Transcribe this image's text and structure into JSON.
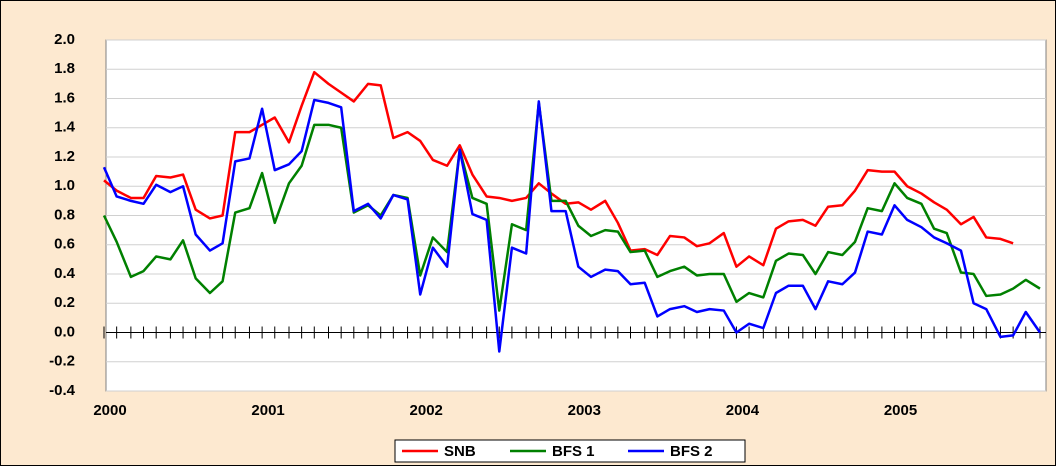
{
  "chart_data": {
    "type": "line",
    "x": [
      2000.0,
      2000.08,
      2000.17,
      2000.25,
      2000.33,
      2000.42,
      2000.5,
      2000.58,
      2000.67,
      2000.75,
      2000.83,
      2000.92,
      2001.0,
      2001.08,
      2001.17,
      2001.25,
      2001.33,
      2001.42,
      2001.5,
      2001.58,
      2001.67,
      2001.75,
      2001.83,
      2001.92,
      2002.0,
      2002.08,
      2002.17,
      2002.25,
      2002.33,
      2002.42,
      2002.5,
      2002.58,
      2002.67,
      2002.75,
      2002.83,
      2002.92,
      2003.0,
      2003.08,
      2003.17,
      2003.25,
      2003.33,
      2003.42,
      2003.5,
      2003.58,
      2003.67,
      2003.75,
      2003.83,
      2003.92,
      2004.0,
      2004.08,
      2004.17,
      2004.25,
      2004.33,
      2004.42,
      2004.5,
      2004.58,
      2004.67,
      2004.75,
      2004.83,
      2004.92,
      2005.0,
      2005.08,
      2005.17,
      2005.25,
      2005.33,
      2005.42,
      2005.5,
      2005.58,
      2005.67,
      2005.75,
      2005.83,
      2005.92
    ],
    "series": [
      {
        "name": "SNB",
        "color": "#ff0000",
        "values": [
          1.04,
          0.97,
          0.92,
          0.92,
          1.07,
          1.06,
          1.08,
          0.84,
          0.78,
          0.8,
          1.37,
          1.37,
          1.42,
          1.47,
          1.3,
          1.55,
          1.78,
          1.7,
          1.64,
          1.58,
          1.7,
          1.69,
          1.33,
          1.37,
          1.31,
          1.18,
          1.14,
          1.28,
          1.08,
          0.93,
          0.92,
          0.9,
          0.92,
          1.02,
          0.95,
          0.88,
          0.89,
          0.84,
          0.9,
          0.75,
          0.56,
          0.57,
          0.53,
          0.66,
          0.65,
          0.59,
          0.61,
          0.68,
          0.45,
          0.52,
          0.46,
          0.71,
          0.76,
          0.77,
          0.73,
          0.86,
          0.87,
          0.97,
          1.11,
          1.1,
          1.1,
          1.0,
          0.95,
          0.89,
          0.84,
          0.74,
          0.79,
          0.65,
          0.64,
          0.61,
          null,
          null
        ]
      },
      {
        "name": "BFS 1",
        "color": "#008000",
        "values": [
          0.8,
          0.62,
          0.38,
          0.42,
          0.52,
          0.5,
          0.63,
          0.37,
          0.27,
          0.35,
          0.82,
          0.85,
          1.09,
          0.75,
          1.02,
          1.14,
          1.42,
          1.42,
          1.4,
          0.82,
          0.87,
          0.8,
          0.94,
          0.92,
          0.39,
          0.65,
          0.55,
          1.25,
          0.92,
          0.88,
          0.15,
          0.74,
          0.7,
          1.57,
          0.9,
          0.9,
          0.73,
          0.66,
          0.7,
          0.69,
          0.55,
          0.56,
          0.38,
          0.42,
          0.45,
          0.39,
          0.4,
          0.4,
          0.21,
          0.27,
          0.24,
          0.49,
          0.54,
          0.53,
          0.4,
          0.55,
          0.53,
          0.62,
          0.85,
          0.83,
          1.02,
          0.92,
          0.88,
          0.71,
          0.68,
          0.41,
          0.4,
          0.25,
          0.26,
          0.3,
          0.36,
          0.3
        ]
      },
      {
        "name": "BFS 2",
        "color": "#0000ff",
        "values": [
          1.13,
          0.93,
          0.9,
          0.88,
          1.01,
          0.96,
          1.0,
          0.67,
          0.56,
          0.61,
          1.17,
          1.19,
          1.53,
          1.11,
          1.15,
          1.24,
          1.59,
          1.57,
          1.54,
          0.83,
          0.88,
          0.78,
          0.94,
          0.91,
          0.26,
          0.58,
          0.45,
          1.25,
          0.81,
          0.77,
          -0.13,
          0.58,
          0.54,
          1.58,
          0.83,
          0.83,
          0.45,
          0.38,
          0.43,
          0.42,
          0.33,
          0.34,
          0.11,
          0.16,
          0.18,
          0.14,
          0.16,
          0.15,
          0.0,
          0.06,
          0.03,
          0.27,
          0.32,
          0.32,
          0.16,
          0.35,
          0.33,
          0.41,
          0.69,
          0.67,
          0.87,
          0.77,
          0.72,
          0.65,
          0.61,
          0.56,
          0.2,
          0.16,
          -0.03,
          -0.02,
          0.14,
          0.0
        ]
      }
    ],
    "xlim": [
      2000,
      2005.92
    ],
    "xticks": [
      2000,
      2001,
      2002,
      2003,
      2004,
      2005
    ],
    "ylim": [
      -0.4,
      2.0
    ],
    "yticks": [
      {
        "value": -0.4,
        "label": "-0.4"
      },
      {
        "value": -0.2,
        "label": "-0.2"
      },
      {
        "value": 0,
        "label": "0.0"
      },
      {
        "value": 0.2,
        "label": "0.2"
      },
      {
        "value": 0.4,
        "label": "0.4"
      },
      {
        "value": 0.6,
        "label": "0.6"
      },
      {
        "value": 0.8,
        "label": "0.8"
      },
      {
        "value": 1.0,
        "label": "1.0"
      },
      {
        "value": 1.2,
        "label": "1.2"
      },
      {
        "value": 1.4,
        "label": "1.4"
      },
      {
        "value": 1.6,
        "label": "1.6"
      },
      {
        "value": 1.8,
        "label": "1.8"
      },
      {
        "value": 2.0,
        "label": "2.0"
      }
    ],
    "grid": true,
    "legend": "bottom"
  }
}
